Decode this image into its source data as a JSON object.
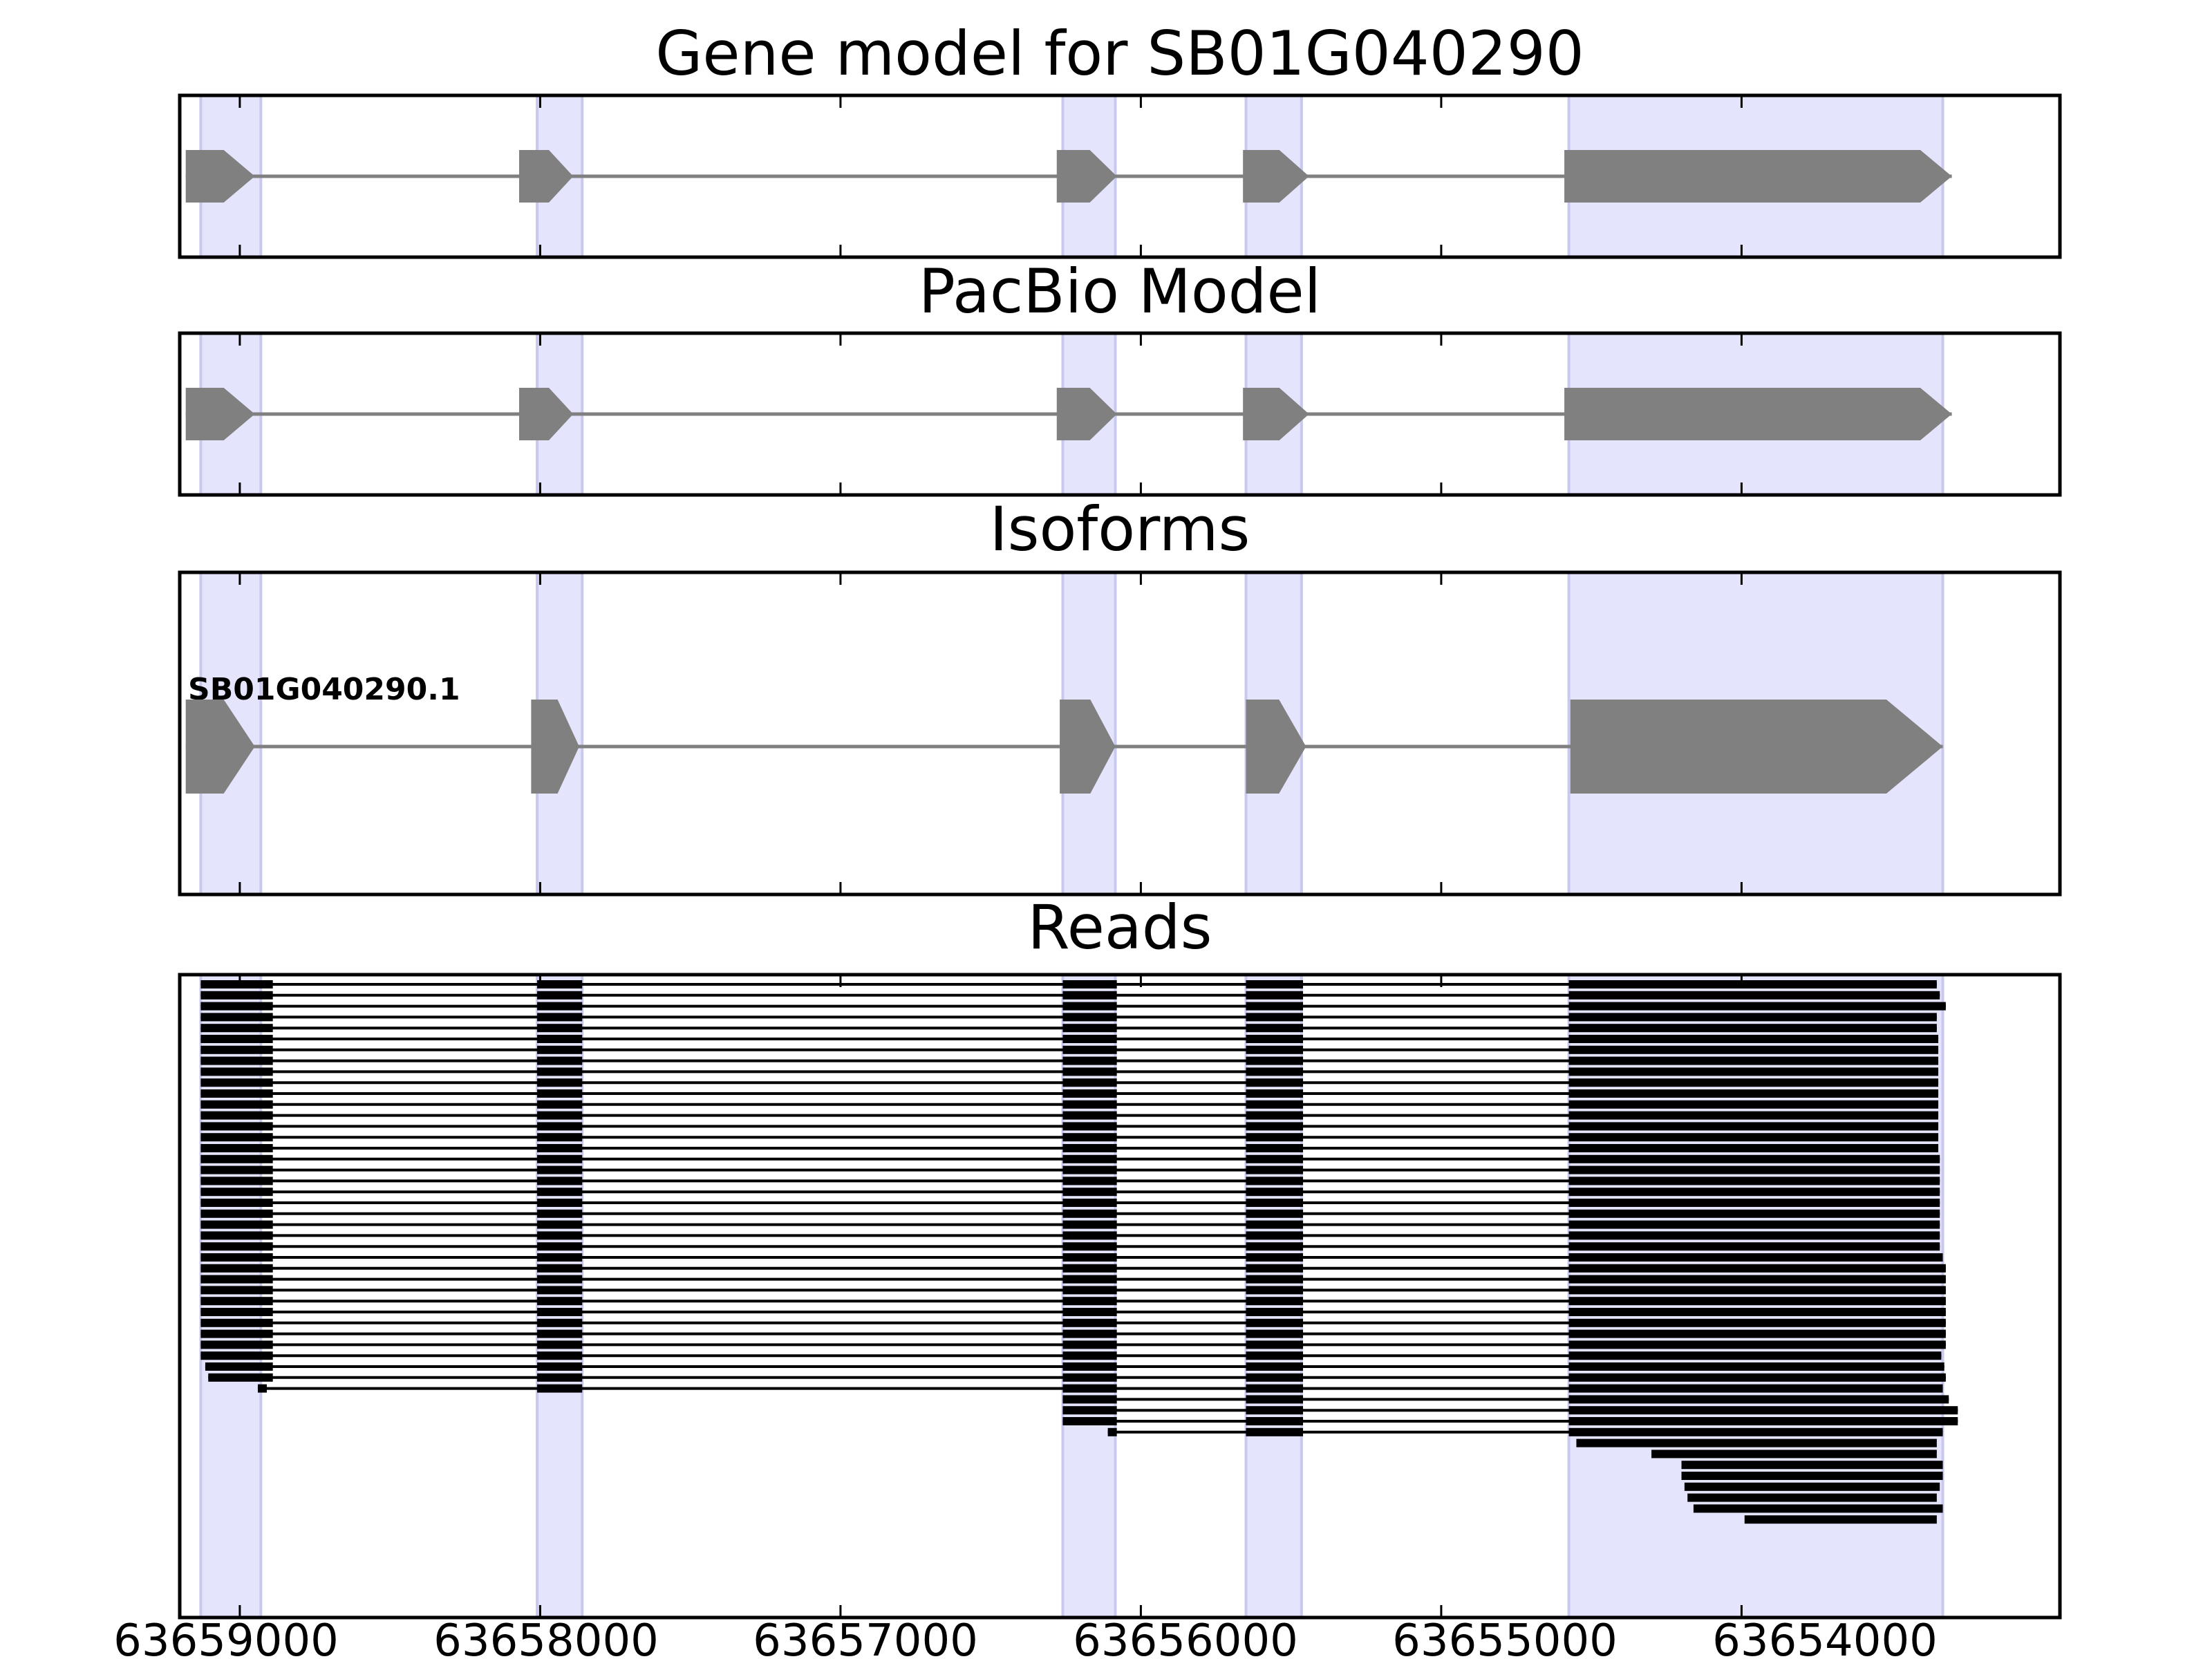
{
  "chart_data": {
    "type": "gene-structure",
    "x_axis": {
      "range": [
        63659200,
        63652940
      ],
      "ticks": [
        63659000,
        63658000,
        63657000,
        63656000,
        63655000,
        63654000
      ],
      "tick_labels": [
        "63659000",
        "63658000",
        "63657000",
        "63656000",
        "63655000",
        "63654000"
      ]
    },
    "highlight_regions": [
      [
        63659130,
        63658930
      ],
      [
        63658010,
        63657860
      ],
      [
        63656260,
        63656085
      ],
      [
        63655650,
        63655465
      ],
      [
        63654575,
        63653330
      ]
    ],
    "colors": {
      "highlight": "#e4e4fc",
      "highlight_edge": "#c9c9ee",
      "model_exon": "#808080",
      "intron": "#808080",
      "read": "#000000"
    },
    "panels": [
      {
        "title": "Gene model for SB01G040290",
        "kind": "model",
        "exons": [
          [
            63659180,
            63658950
          ],
          [
            63658070,
            63657890
          ],
          [
            63656280,
            63656080
          ],
          [
            63655660,
            63655440
          ],
          [
            63654590,
            63653300
          ]
        ]
      },
      {
        "title": "PacBio Model",
        "kind": "model",
        "exons": [
          [
            63659180,
            63658950
          ],
          [
            63658070,
            63657890
          ],
          [
            63656280,
            63656080
          ],
          [
            63655660,
            63655440
          ],
          [
            63654590,
            63653300
          ]
        ]
      },
      {
        "title": "Isoforms",
        "kind": "isoforms",
        "isoforms": [
          {
            "name": "SB01G040290.1",
            "exons": [
              [
                63659180,
                63658950
              ],
              [
                63658030,
                63657870
              ],
              [
                63656270,
                63656085
              ],
              [
                63655650,
                63655450
              ],
              [
                63654570,
                63653330
              ]
            ]
          }
        ]
      },
      {
        "title": "Reads",
        "kind": "reads",
        "read_templates": {
          "full": [
            [
              63659130,
              63658890
            ],
            [
              63658010,
              63657860
            ],
            [
              63656260,
              63656080
            ],
            [
              63655650,
              63655460
            ],
            [
              63654575,
              63653330
            ]
          ]
        },
        "reads": [
          {
            "t": "full",
            "end": 63653350
          },
          {
            "t": "full",
            "end": 63653340
          },
          {
            "t": "full",
            "end": 63653320
          },
          {
            "t": "full",
            "end": 63653350
          },
          {
            "t": "full",
            "end": 63653350
          },
          {
            "t": "full",
            "end": 63653345
          },
          {
            "t": "full",
            "end": 63653345
          },
          {
            "t": "full",
            "end": 63653345
          },
          {
            "t": "full",
            "end": 63653345
          },
          {
            "t": "full",
            "end": 63653345
          },
          {
            "t": "full",
            "end": 63653345
          },
          {
            "t": "full",
            "end": 63653345
          },
          {
            "t": "full",
            "end": 63653345
          },
          {
            "t": "full",
            "end": 63653345
          },
          {
            "t": "full",
            "end": 63653345
          },
          {
            "t": "full",
            "end": 63653345
          },
          {
            "t": "full",
            "end": 63653340
          },
          {
            "t": "full",
            "end": 63653340
          },
          {
            "t": "full",
            "end": 63653340
          },
          {
            "t": "full",
            "end": 63653340
          },
          {
            "t": "full",
            "end": 63653340
          },
          {
            "t": "full",
            "end": 63653340
          },
          {
            "t": "full",
            "end": 63653340
          },
          {
            "t": "full",
            "end": 63653340
          },
          {
            "t": "full",
            "end": 63653340
          },
          {
            "t": "full",
            "end": 63653330
          },
          {
            "t": "full",
            "end": 63653320
          },
          {
            "t": "full",
            "end": 63653320
          },
          {
            "t": "full",
            "end": 63653320
          },
          {
            "t": "full",
            "end": 63653320
          },
          {
            "t": "full",
            "end": 63653320
          },
          {
            "t": "full",
            "end": 63653320
          },
          {
            "t": "full",
            "end": 63653320
          },
          {
            "t": "full",
            "end": 63653320
          },
          {
            "t": "full",
            "end": 63653335
          },
          {
            "t": "full",
            "end": 63653325,
            "start": 63659115
          },
          {
            "t": "full",
            "end": 63653320,
            "start": 63659105
          },
          {
            "exons": [
              [
                63658940,
                63658910
              ],
              [
                63658010,
                63657860
              ],
              [
                63656260,
                63656080
              ],
              [
                63655650,
                63655460
              ],
              [
                63654575,
                63653330
              ]
            ],
            "end": 63653330
          },
          {
            "exons": [
              [
                63656260,
                63656080
              ],
              [
                63655650,
                63655460
              ],
              [
                63654575,
                63653330
              ]
            ],
            "end": 63653310
          },
          {
            "exons": [
              [
                63656260,
                63656080
              ],
              [
                63655650,
                63655460
              ],
              [
                63654575,
                63653280
              ]
            ],
            "end": 63653280
          },
          {
            "exons": [
              [
                63656260,
                63656080
              ],
              [
                63655650,
                63655460
              ],
              [
                63654575,
                63653280
              ]
            ],
            "end": 63653280
          },
          {
            "exons": [
              [
                63656110,
                63656080
              ],
              [
                63655650,
                63655460
              ],
              [
                63654575,
                63653330
              ]
            ],
            "end": 63653330
          },
          {
            "exons": [
              [
                63654550,
                63653350
              ]
            ],
            "end": 63653350
          },
          {
            "exons": [
              [
                63654300,
                63653350
              ]
            ],
            "end": 63653350
          },
          {
            "exons": [
              [
                63654200,
                63653330
              ]
            ],
            "end": 63653330
          },
          {
            "exons": [
              [
                63654200,
                63653330
              ]
            ],
            "end": 63653330
          },
          {
            "exons": [
              [
                63654190,
                63653340
              ]
            ],
            "end": 63653340
          },
          {
            "exons": [
              [
                63654180,
                63653350
              ]
            ],
            "end": 63653350
          },
          {
            "exons": [
              [
                63654160,
                63653330
              ]
            ],
            "end": 63653330
          },
          {
            "exons": [
              [
                63653990,
                63653350
              ]
            ],
            "end": 63653350
          }
        ]
      }
    ]
  }
}
